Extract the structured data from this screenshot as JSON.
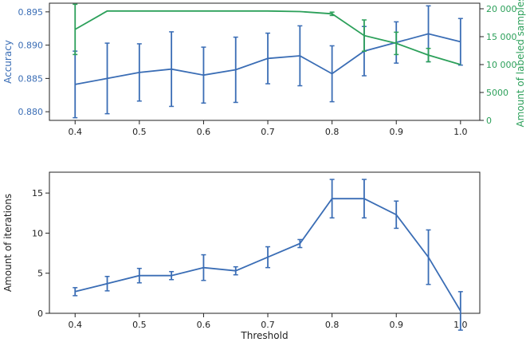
{
  "chart_data": [
    {
      "type": "line",
      "xlabel": "",
      "ylabel": "Accuracy",
      "y2label": "Amount of labeled samples",
      "xlim": [
        0.36,
        1.03
      ],
      "ylim": [
        0.8787,
        0.8963
      ],
      "y2lim": [
        0,
        21000
      ],
      "xticks": [
        "0.4",
        "0.5",
        "0.6",
        "0.7",
        "0.8",
        "0.9",
        "1.0"
      ],
      "yticks": [
        "0.880",
        "0.885",
        "0.890",
        "0.895"
      ],
      "y2ticks": [
        "0",
        "5000",
        "10 000",
        "15 000",
        "20 000"
      ],
      "colors": {
        "accuracy": "#3a6db5",
        "samples": "#2ca05a"
      },
      "series": [
        {
          "axis": "left",
          "x": [
            0.4,
            0.45,
            0.5,
            0.55,
            0.6,
            0.65,
            0.7,
            0.75,
            0.8,
            0.85,
            0.9,
            0.95,
            1.0
          ],
          "values": [
            0.8841,
            0.885,
            0.8859,
            0.8864,
            0.8855,
            0.8863,
            0.888,
            0.8884,
            0.8857,
            0.8891,
            0.8904,
            0.8917,
            0.8905
          ],
          "err": [
            0.005,
            0.0053,
            0.0043,
            0.0056,
            0.0042,
            0.0049,
            0.0038,
            0.0045,
            0.0042,
            0.0037,
            0.0031,
            0.0042,
            0.0035
          ]
        },
        {
          "axis": "right",
          "x": [
            0.4,
            0.45,
            0.5,
            0.55,
            0.6,
            0.65,
            0.7,
            0.75,
            0.8,
            0.85,
            0.9,
            0.95,
            1.0
          ],
          "values": [
            16300,
            19600,
            19600,
            19600,
            19600,
            19600,
            19600,
            19500,
            19100,
            15200,
            13800,
            11700,
            10000
          ],
          "err": [
            4500,
            0,
            0,
            0,
            0,
            0,
            0,
            0,
            300,
            2800,
            2000,
            1200,
            0
          ]
        }
      ]
    },
    {
      "type": "line",
      "xlabel": "Threshold",
      "ylabel": "Amount of iterations",
      "xlim": [
        0.36,
        1.03
      ],
      "ylim": [
        0,
        17.6
      ],
      "xticks": [
        "0.4",
        "0.5",
        "0.6",
        "0.7",
        "0.8",
        "0.9",
        "1.0"
      ],
      "yticks": [
        "0",
        "5",
        "10",
        "15"
      ],
      "colors": {
        "iterations": "#3a6db5"
      },
      "series": [
        {
          "x": [
            0.4,
            0.45,
            0.5,
            0.55,
            0.6,
            0.65,
            0.7,
            0.75,
            0.8,
            0.85,
            0.9,
            0.95,
            1.0
          ],
          "values": [
            2.7,
            3.7,
            4.7,
            4.7,
            5.7,
            5.3,
            7.0,
            8.7,
            14.3,
            14.3,
            12.3,
            7.0,
            0.3
          ],
          "err": [
            0.5,
            0.9,
            0.9,
            0.5,
            1.6,
            0.5,
            1.3,
            0.5,
            2.4,
            2.4,
            1.7,
            3.4,
            2.4
          ]
        }
      ]
    }
  ]
}
